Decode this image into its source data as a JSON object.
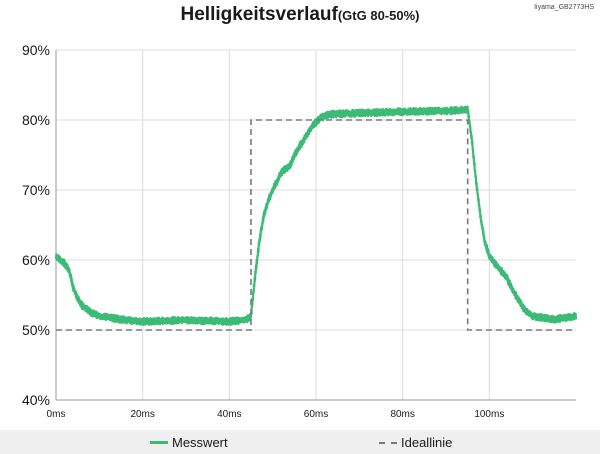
{
  "chart_data": {
    "type": "line",
    "title": "Helligkeitsverlauf",
    "subtitle": "(GtG 80-50%)",
    "source_tag": "Iiyama_GB2773HS",
    "xlabel": "",
    "ylabel": "",
    "xlim": [
      0,
      120
    ],
    "ylim": [
      40,
      90
    ],
    "x_ticks": [
      0,
      20,
      40,
      60,
      80,
      100
    ],
    "x_tick_labels": [
      "0ms",
      "20ms",
      "40ms",
      "60ms",
      "80ms",
      "100ms"
    ],
    "y_ticks": [
      40,
      50,
      60,
      70,
      80,
      90
    ],
    "y_tick_labels": [
      "40%",
      "50%",
      "60%",
      "70%",
      "80%",
      "90%"
    ],
    "grid": true,
    "legend_position": "bottom",
    "series": [
      {
        "name": "Messwert",
        "style": "solid",
        "color": "#3bbb76",
        "noise_band": 1.0,
        "points": [
          [
            0,
            60.5
          ],
          [
            2,
            59.5
          ],
          [
            3,
            58.5
          ],
          [
            4,
            56
          ],
          [
            5,
            54.5
          ],
          [
            6,
            53.5
          ],
          [
            8,
            52.5
          ],
          [
            10,
            52
          ],
          [
            15,
            51.5
          ],
          [
            20,
            51.2
          ],
          [
            30,
            51.4
          ],
          [
            40,
            51.2
          ],
          [
            44,
            51.5
          ],
          [
            45,
            52
          ],
          [
            46,
            58
          ],
          [
            47,
            63
          ],
          [
            48,
            66.5
          ],
          [
            49,
            68.5
          ],
          [
            50,
            70
          ],
          [
            52,
            72.5
          ],
          [
            54,
            73.5
          ],
          [
            55,
            75
          ],
          [
            57,
            77
          ],
          [
            59,
            79
          ],
          [
            61,
            80.3
          ],
          [
            63,
            80.8
          ],
          [
            70,
            81
          ],
          [
            80,
            81.2
          ],
          [
            90,
            81.3
          ],
          [
            95,
            81.5
          ],
          [
            96,
            77
          ],
          [
            97,
            71
          ],
          [
            98,
            66
          ],
          [
            99,
            62.5
          ],
          [
            100,
            60.5
          ],
          [
            102,
            59
          ],
          [
            104,
            57.5
          ],
          [
            106,
            55
          ],
          [
            108,
            53
          ],
          [
            110,
            52
          ],
          [
            115,
            51.5
          ],
          [
            120,
            52
          ]
        ]
      },
      {
        "name": "Ideallinie",
        "style": "dashed",
        "color": "#7a7a7a",
        "points": [
          [
            0,
            50
          ],
          [
            45,
            50
          ],
          [
            45,
            80
          ],
          [
            95,
            80
          ],
          [
            95,
            50
          ],
          [
            120,
            50
          ]
        ]
      }
    ]
  }
}
